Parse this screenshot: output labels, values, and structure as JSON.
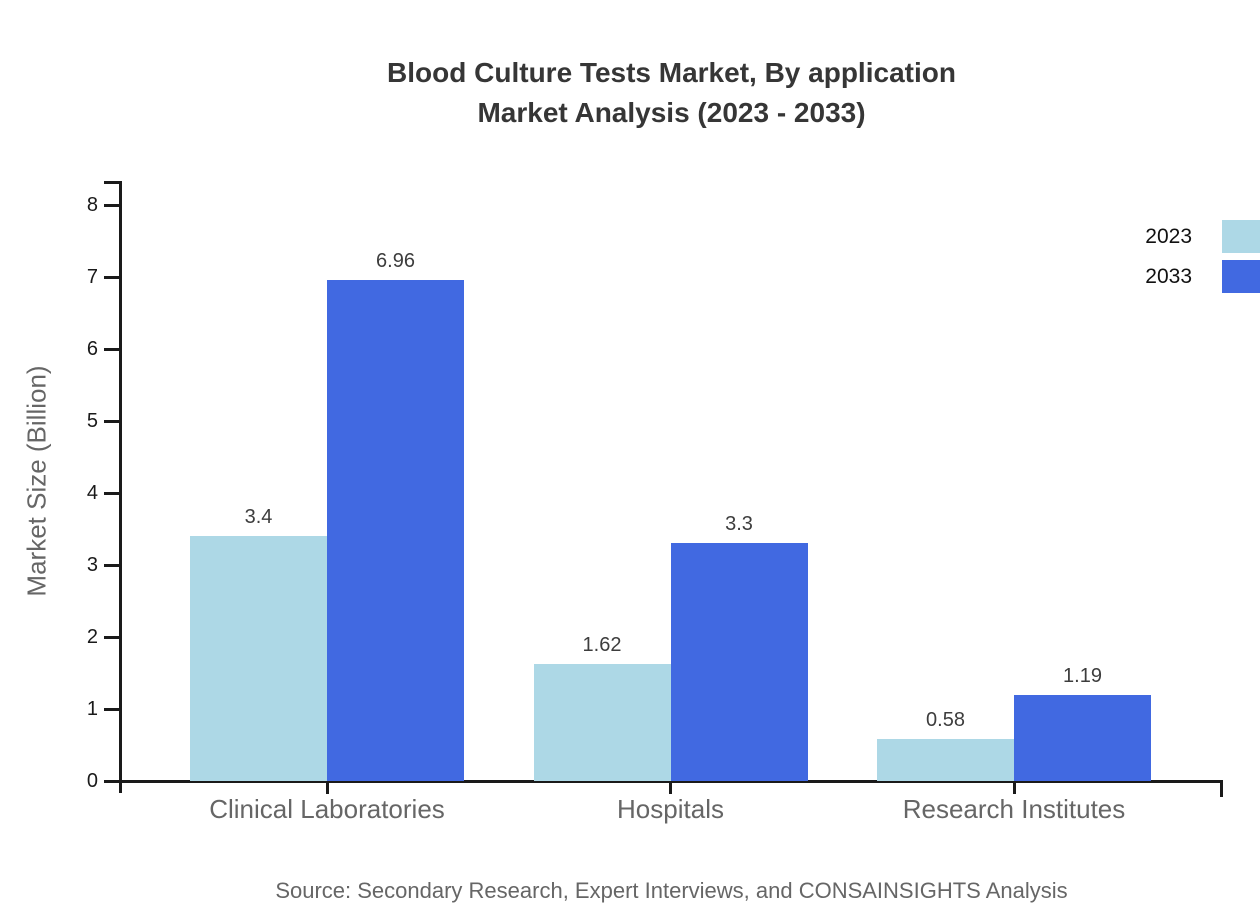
{
  "chart_data": {
    "type": "bar",
    "title_line1": "Blood Culture Tests Market, By application",
    "title_line2": "Market Analysis (2023 - 2033)",
    "ylabel": "Market Size (Billion)",
    "xlabel": "",
    "categories": [
      "Clinical Laboratories",
      "Hospitals",
      "Research Institutes"
    ],
    "series": [
      {
        "name": "2023",
        "color": "#ADD8E6",
        "values": [
          3.4,
          1.62,
          0.58
        ],
        "labels": [
          "3.4",
          "1.62",
          "0.58"
        ]
      },
      {
        "name": "2033",
        "color": "#4169E1",
        "values": [
          6.96,
          3.3,
          1.19
        ],
        "labels": [
          "6.96",
          "3.3",
          "1.19"
        ]
      }
    ],
    "ylim": [
      0,
      8
    ],
    "yticks": [
      0,
      1,
      2,
      3,
      4,
      5,
      6,
      7,
      8
    ],
    "grid": false,
    "legend_position": "top-right"
  },
  "source_note": "Source: Secondary Research, Expert Interviews, and CONSAINSIGHTS Analysis",
  "colors": {
    "series_2023": "#ADD8E6",
    "series_2033": "#4169E1",
    "axis": "#1a1a1a",
    "title_text": "#363636",
    "category_text": "#666666",
    "value_text": "#3d3d3d",
    "muted_text": "#666666"
  }
}
